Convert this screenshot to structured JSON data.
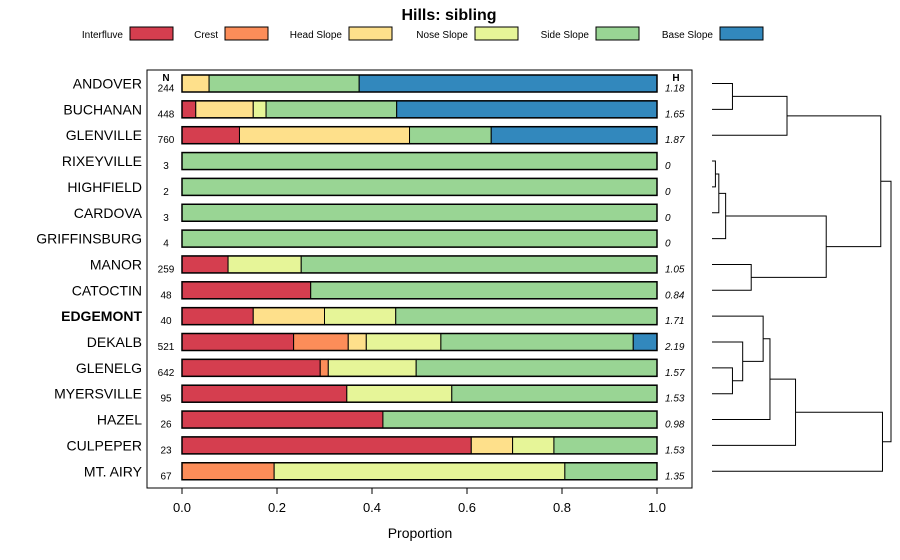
{
  "chart_data": {
    "type": "bar",
    "orientation": "horizontal",
    "stacked": true,
    "title": "Hills: sibling",
    "xlabel": "Proportion",
    "ylabel": "",
    "xlim": [
      0,
      1
    ],
    "xticks": [
      "0.0",
      "0.2",
      "0.4",
      "0.6",
      "0.8",
      "1.0"
    ],
    "xtick_values": [
      0,
      0.2,
      0.4,
      0.6,
      0.8,
      1.0
    ],
    "legend_position": "top",
    "n_header": "N",
    "h_header": "H",
    "highlight": "EDGEMONT",
    "series": [
      {
        "name": "Interfluve",
        "color": "#d53e4f"
      },
      {
        "name": "Crest",
        "color": "#fc8d59"
      },
      {
        "name": "Head Slope",
        "color": "#fee08b"
      },
      {
        "name": "Nose Slope",
        "color": "#e6f598"
      },
      {
        "name": "Side Slope",
        "color": "#99d594"
      },
      {
        "name": "Base Slope",
        "color": "#3288bd"
      }
    ],
    "categories": [
      "ANDOVER",
      "BUCHANAN",
      "GLENVILLE",
      "RIXEYVILLE",
      "HIGHFIELD",
      "CARDOVA",
      "GRIFFINSBURG",
      "MANOR",
      "CATOCTIN",
      "EDGEMONT",
      "DEKALB",
      "GLENELG",
      "MYERSVILLE",
      "HAZEL",
      "CULPEPER",
      "MT. AIRY"
    ],
    "rows": [
      {
        "name": "ANDOVER",
        "n": "244",
        "h": "1.18",
        "values": [
          0,
          0,
          0.057,
          0,
          0.316,
          0.627
        ]
      },
      {
        "name": "BUCHANAN",
        "n": "448",
        "h": "1.65",
        "values": [
          0.029,
          0,
          0.121,
          0.027,
          0.275,
          0.548
        ]
      },
      {
        "name": "GLENVILLE",
        "n": "760",
        "h": "1.87",
        "values": [
          0.121,
          0,
          0.358,
          0,
          0.172,
          0.349
        ]
      },
      {
        "name": "RIXEYVILLE",
        "n": "3",
        "h": "0",
        "values": [
          0,
          0,
          0,
          0,
          1.0,
          0
        ]
      },
      {
        "name": "HIGHFIELD",
        "n": "2",
        "h": "0",
        "values": [
          0,
          0,
          0,
          0,
          1.0,
          0
        ]
      },
      {
        "name": "CARDOVA",
        "n": "3",
        "h": "0",
        "values": [
          0,
          0,
          0,
          0,
          1.0,
          0
        ]
      },
      {
        "name": "GRIFFINSBURG",
        "n": "4",
        "h": "0",
        "values": [
          0,
          0,
          0,
          0,
          1.0,
          0
        ]
      },
      {
        "name": "MANOR",
        "n": "259",
        "h": "1.05",
        "values": [
          0.097,
          0,
          0,
          0.154,
          0.749,
          0
        ]
      },
      {
        "name": "CATOCTIN",
        "n": "48",
        "h": "0.84",
        "values": [
          0.271,
          0,
          0,
          0,
          0.729,
          0
        ]
      },
      {
        "name": "EDGEMONT",
        "n": "40",
        "h": "1.71",
        "values": [
          0.15,
          0,
          0.15,
          0.15,
          0.55,
          0
        ]
      },
      {
        "name": "DEKALB",
        "n": "521",
        "h": "2.19",
        "values": [
          0.235,
          0.115,
          0.038,
          0.157,
          0.405,
          0.05
        ]
      },
      {
        "name": "GLENELG",
        "n": "642",
        "h": "1.57",
        "values": [
          0.291,
          0.017,
          0,
          0.185,
          0.507,
          0
        ]
      },
      {
        "name": "MYERSVILLE",
        "n": "95",
        "h": "1.53",
        "values": [
          0.347,
          0,
          0,
          0.221,
          0.432,
          0
        ]
      },
      {
        "name": "HAZEL",
        "n": "26",
        "h": "0.98",
        "values": [
          0.423,
          0,
          0,
          0,
          0.577,
          0
        ]
      },
      {
        "name": "CULPEPER",
        "n": "23",
        "h": "1.53",
        "values": [
          0.609,
          0,
          0.087,
          0.087,
          0.217,
          0
        ]
      },
      {
        "name": "MT. AIRY",
        "n": "67",
        "h": "1.35",
        "values": [
          0,
          0.194,
          0,
          0.612,
          0.194,
          0
        ]
      }
    ],
    "dendrogram": {
      "note": "hierarchical clustering of rows (heights in relative units, 0 to 1)",
      "merges": [
        {
          "a": "ANDOVER",
          "b": "BUCHANAN",
          "height": 0.12
        },
        {
          "a": "ANDOVER+BUCHANAN",
          "b": "GLENVILLE",
          "height": 0.44
        },
        {
          "a": "RIXEYVILLE",
          "b": "HIGHFIELD",
          "height": 0.02
        },
        {
          "a": "RIXEYVILLE+HIGHFIELD",
          "b": "CARDOVA",
          "height": 0.04
        },
        {
          "a": "RIXEYVILLE+HIGHFIELD+CARDOVA",
          "b": "GRIFFINSBURG",
          "height": 0.08
        },
        {
          "a": "MANOR",
          "b": "CATOCTIN",
          "height": 0.23
        },
        {
          "a": "RIXEYVILLE+HIGHFIELD+CARDOVA+GRIFFINSBURG",
          "b": "MANOR+CATOCTIN",
          "height": 0.67
        },
        {
          "a": "GLENELG",
          "b": "MYERSVILLE",
          "height": 0.12
        },
        {
          "a": "DEKALB",
          "b": "GLENELG+MYERSVILLE",
          "height": 0.18
        },
        {
          "a": "EDGEMONT",
          "b": "DEKALB+GLENELG+MYERSVILLE",
          "height": 0.3
        },
        {
          "a": "EDGEMONT+DEKALB+GLENELG+MYERSVILLE",
          "b": "HAZEL",
          "height": 0.34
        },
        {
          "a": "EDGEMONT+DEKALB+GLENELG+MYERSVILLE+HAZEL",
          "b": "CULPEPER",
          "height": 0.49
        },
        {
          "a": "ANDOVER+BUCHANAN+GLENVILLE",
          "b": "RIXEYVILLE+HIGHFIELD+CARDOVA+GRIFFINSBURG+MANOR+CATOCTIN",
          "height": 0.99
        },
        {
          "a": "EDGEMONT+DEKALB+GLENELG+MYERSVILLE+HAZEL+CULPEPER",
          "b": "MT. AIRY",
          "height": 1.0
        },
        {
          "a": "ANDOVER+BUCHANAN+GLENVILLE+RIXEYVILLE+HIGHFIELD+CARDOVA+GRIFFINSBURG+MANOR+CATOCTIN",
          "b": "EDGEMONT+DEKALB+GLENELG+MYERSVILLE+HAZEL+CULPEPER+MT. AIRY",
          "height": 1.05
        }
      ]
    }
  }
}
